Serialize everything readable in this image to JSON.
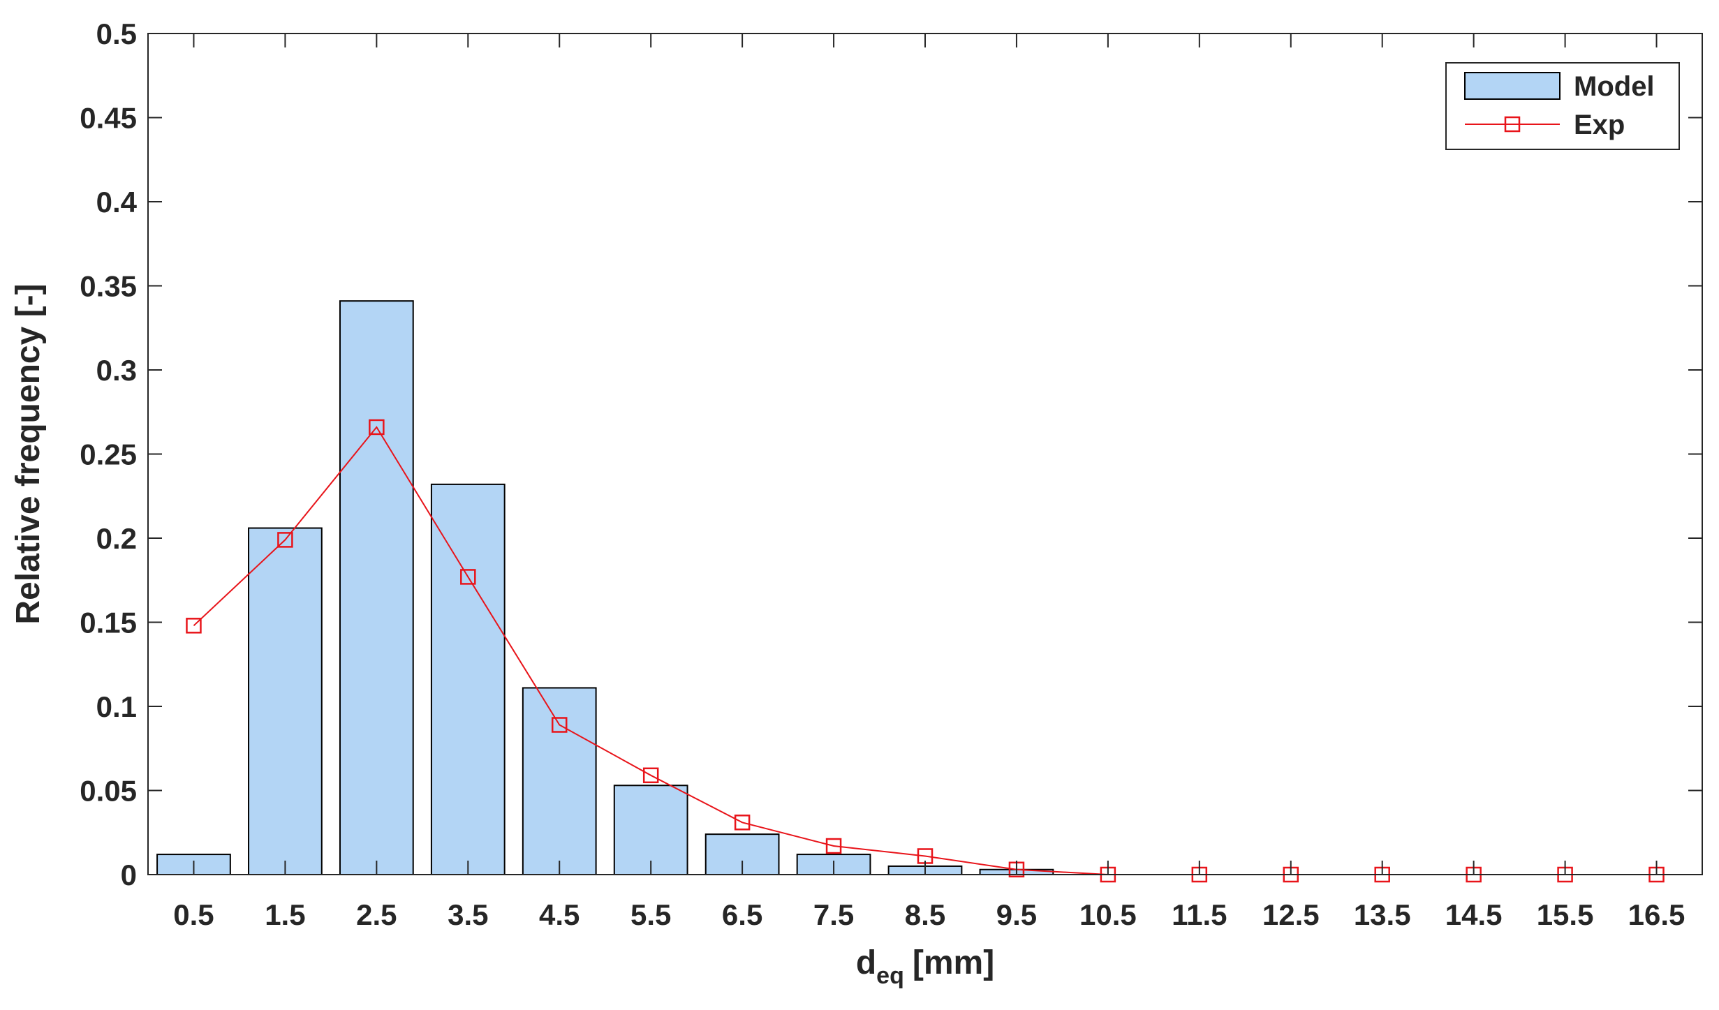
{
  "chart_data": {
    "type": "bar",
    "title": "",
    "xlabel_main": "d",
    "xlabel_sub": "eq",
    "xlabel_unit": "[mm]",
    "ylabel": "Relative frequency [-]",
    "ylim": [
      0,
      0.5
    ],
    "yticks": [
      "0",
      "0.05",
      "0.1",
      "0.15",
      "0.2",
      "0.25",
      "0.3",
      "0.35",
      "0.4",
      "0.45",
      "0.5"
    ],
    "categories": [
      "0.5",
      "1.5",
      "2.5",
      "3.5",
      "4.5",
      "5.5",
      "6.5",
      "7.5",
      "8.5",
      "9.5",
      "10.5",
      "11.5",
      "12.5",
      "13.5",
      "14.5",
      "15.5",
      "16.5"
    ],
    "legend_position": "top-right",
    "series": [
      {
        "name": "Model",
        "kind": "bar",
        "color": "#b3d5f5",
        "edge_color": "#000000",
        "values": [
          0.012,
          0.206,
          0.341,
          0.232,
          0.111,
          0.053,
          0.024,
          0.012,
          0.005,
          0.003,
          0,
          0,
          0,
          0,
          0,
          0,
          0
        ]
      },
      {
        "name": "Exp",
        "kind": "line",
        "marker": "square",
        "color": "#e8141a",
        "values": [
          0.148,
          0.199,
          0.266,
          0.177,
          0.089,
          0.059,
          0.031,
          0.017,
          0.011,
          0.003,
          0,
          0,
          0,
          0,
          0,
          0,
          0
        ]
      }
    ]
  }
}
